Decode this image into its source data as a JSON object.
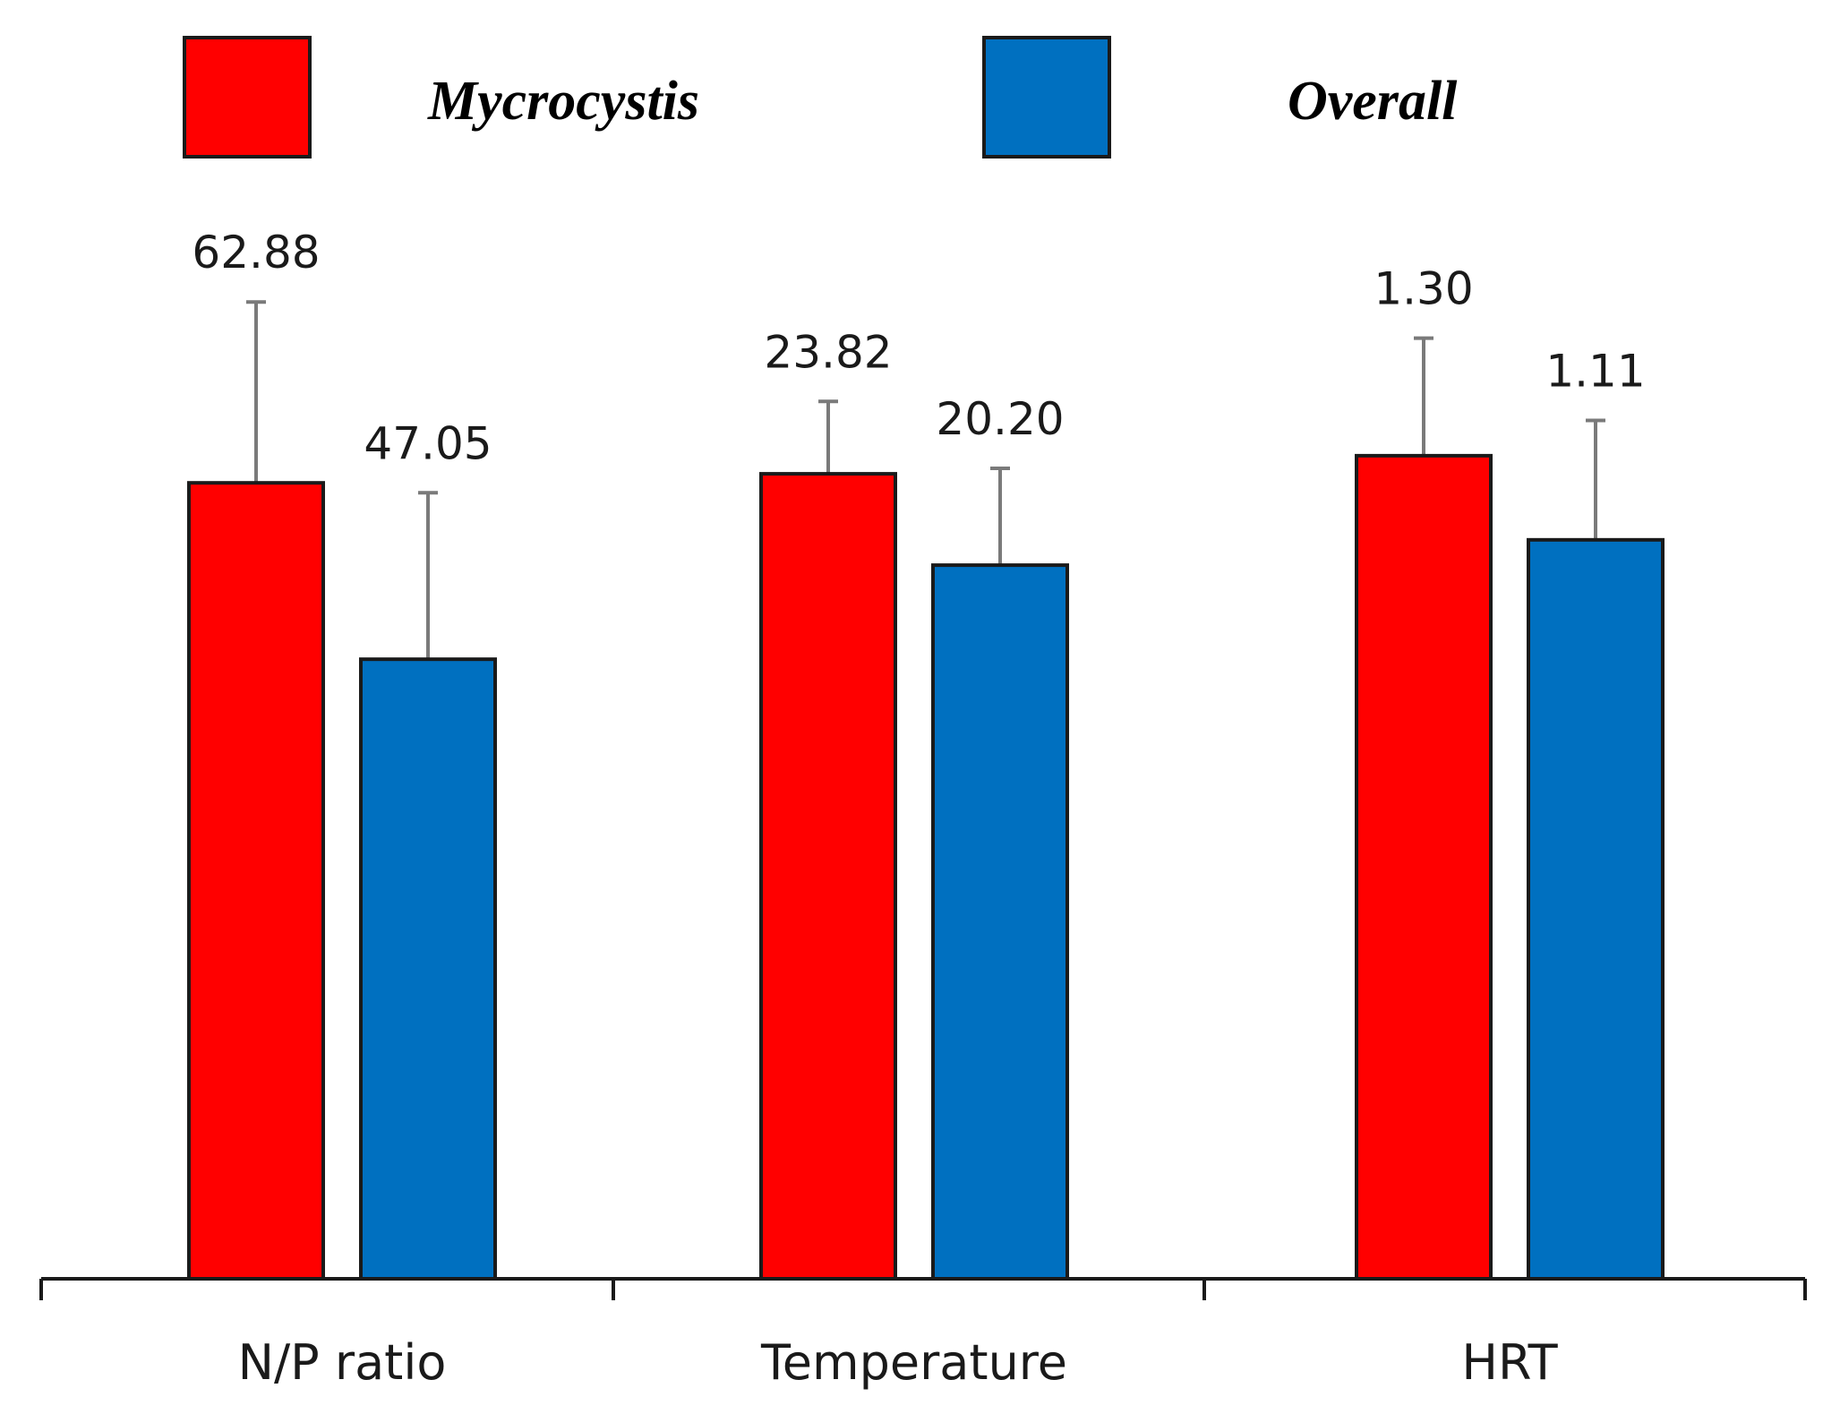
{
  "chart_data": {
    "type": "bar",
    "categories": [
      "N/P ratio",
      "Temperature",
      "HRT"
    ],
    "series": [
      {
        "name": "Mycrocystis",
        "color": "#ff0000",
        "values": [
          62.88,
          23.82,
          1.3
        ],
        "value_labels": [
          "62.88",
          "23.82",
          "1.30"
        ],
        "relative_height": [
          0.88,
          0.89,
          0.91
        ],
        "error_top_relative": [
          1.08,
          0.97,
          1.04
        ]
      },
      {
        "name": "Overall",
        "color": "#0070c0",
        "values": [
          47.05,
          20.2,
          1.11
        ],
        "value_labels": [
          "47.05",
          "20.20",
          "1.11"
        ],
        "relative_height": [
          0.685,
          0.789,
          0.817
        ],
        "error_top_relative": [
          0.869,
          0.896,
          0.949
        ]
      }
    ],
    "legend_position": "top",
    "grid": false,
    "xlabel": "",
    "ylabel": "",
    "y_axis_shown": false
  }
}
